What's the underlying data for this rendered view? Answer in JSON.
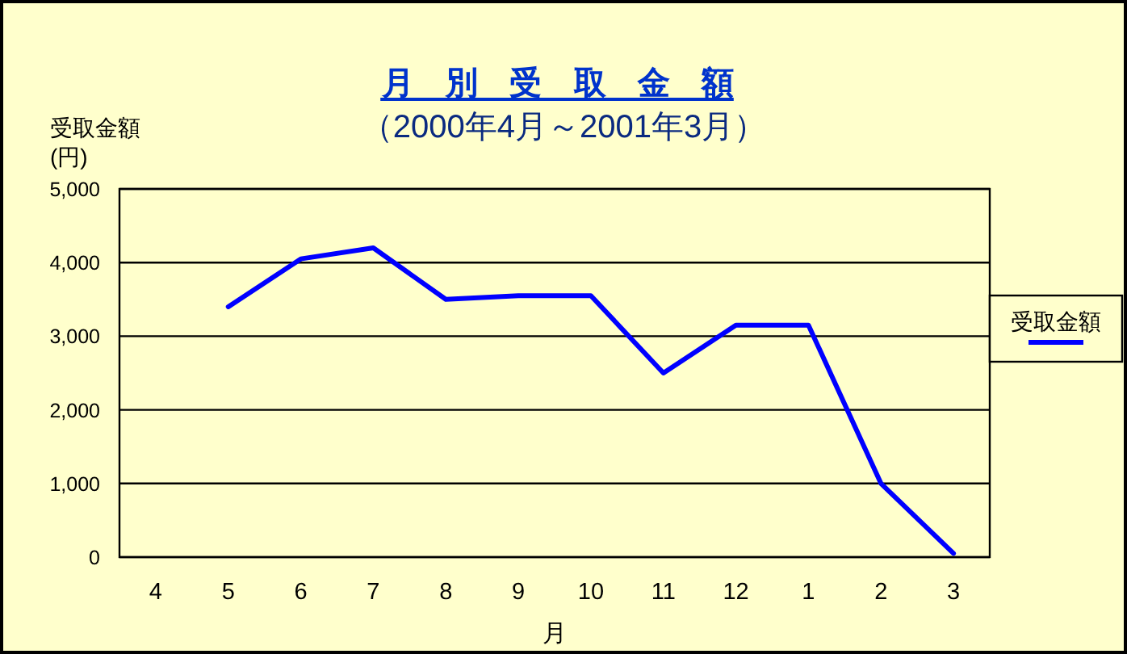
{
  "chart_data": {
    "type": "line",
    "title": "月 別 受 取 金 額",
    "subtitle": "（2000年4月～2001年3月）",
    "ylabel": "受取金額\n(円)",
    "xlabel": "月",
    "categories": [
      "4",
      "5",
      "6",
      "7",
      "8",
      "9",
      "10",
      "11",
      "12",
      "1",
      "2",
      "3"
    ],
    "series": [
      {
        "name": "受取金額",
        "color": "#0000ff",
        "values": [
          null,
          3400,
          4050,
          4200,
          3500,
          3550,
          3550,
          2500,
          3150,
          3150,
          1000,
          50
        ]
      }
    ],
    "ylim": [
      0,
      5000
    ],
    "yticks": [
      0,
      {
        "value": 1000,
        "label": "1,000"
      },
      {
        "value": 2000,
        "label": "2,000"
      },
      {
        "value": 3000,
        "label": "3,000"
      },
      {
        "value": 4000,
        "label": "4,000"
      },
      {
        "value": 5000,
        "label": "5,000"
      }
    ],
    "grid": "y",
    "legend": "right"
  }
}
